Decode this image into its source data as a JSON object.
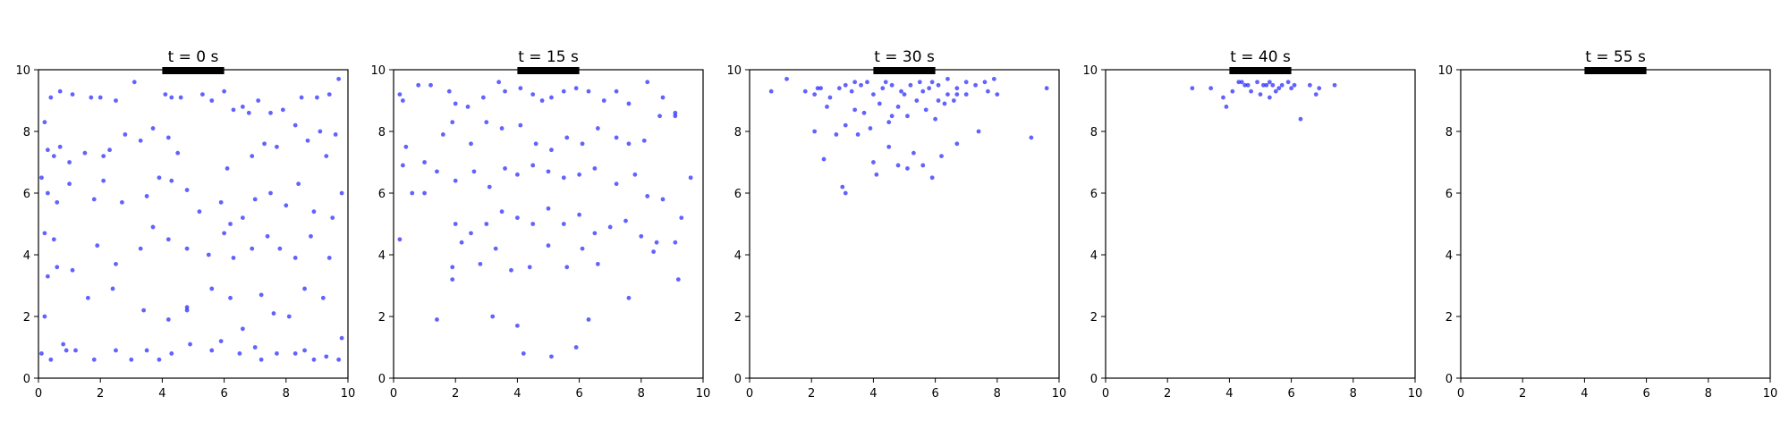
{
  "colors": {
    "points": "#1f1fff",
    "bar": "#000000",
    "frame": "#000000"
  },
  "chart_data": [
    {
      "type": "scatter",
      "title": "t = 0 s",
      "xlim": [
        0,
        10
      ],
      "ylim": [
        0,
        10
      ],
      "xticks": [
        0,
        2,
        4,
        6,
        8,
        10
      ],
      "yticks": [
        0,
        2,
        4,
        6,
        8,
        10
      ],
      "bar": {
        "x": [
          4,
          6
        ],
        "y": 10
      },
      "points": [
        [
          0.2,
          8.3
        ],
        [
          0.4,
          9.1
        ],
        [
          0.7,
          9.3
        ],
        [
          1.1,
          9.2
        ],
        [
          1.7,
          9.1
        ],
        [
          2.0,
          9.1
        ],
        [
          2.5,
          9.0
        ],
        [
          3.1,
          9.6
        ],
        [
          4.1,
          9.2
        ],
        [
          4.3,
          9.1
        ],
        [
          4.6,
          9.1
        ],
        [
          5.3,
          9.2
        ],
        [
          5.6,
          9.0
        ],
        [
          6.0,
          9.3
        ],
        [
          6.3,
          8.7
        ],
        [
          6.6,
          8.8
        ],
        [
          6.8,
          8.6
        ],
        [
          7.1,
          9.0
        ],
        [
          7.5,
          8.6
        ],
        [
          7.9,
          8.7
        ],
        [
          8.5,
          9.1
        ],
        [
          9.0,
          9.1
        ],
        [
          9.4,
          9.2
        ],
        [
          9.7,
          9.7
        ],
        [
          0.3,
          7.4
        ],
        [
          0.5,
          7.2
        ],
        [
          0.7,
          7.5
        ],
        [
          1.0,
          7.0
        ],
        [
          1.5,
          7.3
        ],
        [
          2.1,
          7.2
        ],
        [
          2.3,
          7.4
        ],
        [
          2.8,
          7.9
        ],
        [
          3.3,
          7.7
        ],
        [
          3.7,
          8.1
        ],
        [
          4.2,
          7.8
        ],
        [
          4.5,
          7.3
        ],
        [
          6.1,
          6.8
        ],
        [
          6.9,
          7.2
        ],
        [
          7.3,
          7.6
        ],
        [
          7.7,
          7.5
        ],
        [
          8.3,
          8.2
        ],
        [
          8.7,
          7.7
        ],
        [
          9.1,
          8.0
        ],
        [
          9.3,
          7.2
        ],
        [
          9.6,
          7.9
        ],
        [
          0.1,
          6.5
        ],
        [
          0.3,
          6.0
        ],
        [
          0.6,
          5.7
        ],
        [
          1.0,
          6.3
        ],
        [
          1.8,
          5.8
        ],
        [
          2.1,
          6.4
        ],
        [
          2.7,
          5.7
        ],
        [
          3.5,
          5.9
        ],
        [
          3.9,
          6.5
        ],
        [
          4.3,
          6.4
        ],
        [
          4.8,
          6.1
        ],
        [
          5.2,
          5.4
        ],
        [
          5.9,
          5.7
        ],
        [
          6.2,
          5.0
        ],
        [
          6.6,
          5.2
        ],
        [
          7.0,
          5.8
        ],
        [
          7.5,
          6.0
        ],
        [
          8.0,
          5.6
        ],
        [
          8.4,
          6.3
        ],
        [
          8.9,
          5.4
        ],
        [
          9.5,
          5.2
        ],
        [
          9.8,
          6.0
        ],
        [
          0.2,
          4.7
        ],
        [
          0.5,
          4.5
        ],
        [
          1.1,
          3.5
        ],
        [
          1.9,
          4.3
        ],
        [
          2.5,
          3.7
        ],
        [
          3.3,
          4.2
        ],
        [
          3.7,
          4.9
        ],
        [
          4.2,
          4.5
        ],
        [
          4.8,
          4.2
        ],
        [
          5.5,
          4.0
        ],
        [
          6.0,
          4.7
        ],
        [
          6.3,
          3.9
        ],
        [
          6.9,
          4.2
        ],
        [
          7.4,
          4.6
        ],
        [
          7.8,
          4.2
        ],
        [
          8.3,
          3.9
        ],
        [
          8.8,
          4.6
        ],
        [
          9.4,
          3.9
        ],
        [
          0.3,
          3.3
        ],
        [
          0.6,
          3.6
        ],
        [
          1.6,
          2.6
        ],
        [
          2.4,
          2.9
        ],
        [
          3.4,
          2.2
        ],
        [
          4.2,
          1.9
        ],
        [
          4.8,
          2.2
        ],
        [
          5.6,
          2.9
        ],
        [
          6.2,
          2.6
        ],
        [
          6.6,
          1.6
        ],
        [
          7.2,
          2.7
        ],
        [
          7.6,
          2.1
        ],
        [
          8.1,
          2.0
        ],
        [
          8.6,
          2.9
        ],
        [
          9.2,
          2.6
        ],
        [
          9.8,
          1.3
        ],
        [
          0.1,
          0.8
        ],
        [
          0.4,
          0.6
        ],
        [
          0.8,
          1.1
        ],
        [
          1.2,
          0.9
        ],
        [
          1.8,
          0.6
        ],
        [
          2.5,
          0.9
        ],
        [
          3.0,
          0.6
        ],
        [
          3.5,
          0.9
        ],
        [
          3.9,
          0.6
        ],
        [
          4.3,
          0.8
        ],
        [
          4.9,
          1.1
        ],
        [
          5.6,
          0.9
        ],
        [
          5.9,
          1.2
        ],
        [
          6.5,
          0.8
        ],
        [
          7.2,
          0.6
        ],
        [
          7.7,
          0.8
        ],
        [
          8.3,
          0.8
        ],
        [
          8.9,
          0.6
        ],
        [
          9.3,
          0.7
        ],
        [
          9.7,
          0.6
        ],
        [
          0.2,
          2.0
        ],
        [
          0.9,
          0.9
        ],
        [
          4.8,
          2.3
        ],
        [
          7.0,
          1.0
        ],
        [
          8.6,
          0.9
        ]
      ]
    },
    {
      "type": "scatter",
      "title": "t = 15 s",
      "xlim": [
        0,
        10
      ],
      "ylim": [
        0,
        10
      ],
      "xticks": [
        0,
        2,
        4,
        6,
        8,
        10
      ],
      "yticks": [
        0,
        2,
        4,
        6,
        8,
        10
      ],
      "bar": {
        "x": [
          4,
          6
        ],
        "y": 10
      },
      "points": [
        [
          0.2,
          9.2
        ],
        [
          0.3,
          9.0
        ],
        [
          0.8,
          9.5
        ],
        [
          1.2,
          9.5
        ],
        [
          1.8,
          9.3
        ],
        [
          2.0,
          8.9
        ],
        [
          2.4,
          8.8
        ],
        [
          2.9,
          9.1
        ],
        [
          3.4,
          9.6
        ],
        [
          3.6,
          9.3
        ],
        [
          4.1,
          9.4
        ],
        [
          4.5,
          9.2
        ],
        [
          4.8,
          9.0
        ],
        [
          5.1,
          9.1
        ],
        [
          5.5,
          9.3
        ],
        [
          5.9,
          9.4
        ],
        [
          6.3,
          9.3
        ],
        [
          6.8,
          9.0
        ],
        [
          7.2,
          9.3
        ],
        [
          7.6,
          8.9
        ],
        [
          8.2,
          9.6
        ],
        [
          8.7,
          9.1
        ],
        [
          9.1,
          8.5
        ],
        [
          0.4,
          7.5
        ],
        [
          1.0,
          7.0
        ],
        [
          1.6,
          7.9
        ],
        [
          1.9,
          8.3
        ],
        [
          2.5,
          7.6
        ],
        [
          3.0,
          8.3
        ],
        [
          3.5,
          8.1
        ],
        [
          4.1,
          8.2
        ],
        [
          4.6,
          7.6
        ],
        [
          5.1,
          7.4
        ],
        [
          5.6,
          7.8
        ],
        [
          6.1,
          7.6
        ],
        [
          6.6,
          8.1
        ],
        [
          7.2,
          7.8
        ],
        [
          7.6,
          7.6
        ],
        [
          8.1,
          7.7
        ],
        [
          8.6,
          8.5
        ],
        [
          9.1,
          8.6
        ],
        [
          0.3,
          6.9
        ],
        [
          0.6,
          6.0
        ],
        [
          1.4,
          6.7
        ],
        [
          2.0,
          6.4
        ],
        [
          2.6,
          6.7
        ],
        [
          3.1,
          6.2
        ],
        [
          3.6,
          6.8
        ],
        [
          4.0,
          6.6
        ],
        [
          4.5,
          6.9
        ],
        [
          5.0,
          6.7
        ],
        [
          5.5,
          6.5
        ],
        [
          6.0,
          6.6
        ],
        [
          6.5,
          6.8
        ],
        [
          7.2,
          6.3
        ],
        [
          7.8,
          6.6
        ],
        [
          8.2,
          5.9
        ],
        [
          8.7,
          5.8
        ],
        [
          9.3,
          5.2
        ],
        [
          9.6,
          6.5
        ],
        [
          0.2,
          4.5
        ],
        [
          1.0,
          6.0
        ],
        [
          2.0,
          5.0
        ],
        [
          2.5,
          4.7
        ],
        [
          3.0,
          5.0
        ],
        [
          3.5,
          5.4
        ],
        [
          4.0,
          5.2
        ],
        [
          4.5,
          5.0
        ],
        [
          5.0,
          5.5
        ],
        [
          5.5,
          5.0
        ],
        [
          6.0,
          5.3
        ],
        [
          6.5,
          4.7
        ],
        [
          7.0,
          4.9
        ],
        [
          7.5,
          5.1
        ],
        [
          8.0,
          4.6
        ],
        [
          8.5,
          4.4
        ],
        [
          9.1,
          4.4
        ],
        [
          1.9,
          3.6
        ],
        [
          2.2,
          4.4
        ],
        [
          2.8,
          3.7
        ],
        [
          3.3,
          4.2
        ],
        [
          3.8,
          3.5
        ],
        [
          4.4,
          3.6
        ],
        [
          5.0,
          4.3
        ],
        [
          5.6,
          3.6
        ],
        [
          6.1,
          4.2
        ],
        [
          6.6,
          3.7
        ],
        [
          7.6,
          2.6
        ],
        [
          8.4,
          4.1
        ],
        [
          9.2,
          3.2
        ],
        [
          1.4,
          1.9
        ],
        [
          3.2,
          2.0
        ],
        [
          4.0,
          1.7
        ],
        [
          4.2,
          0.8
        ],
        [
          5.1,
          0.7
        ],
        [
          5.9,
          1.0
        ],
        [
          6.3,
          1.9
        ],
        [
          1.9,
          3.2
        ]
      ]
    },
    {
      "type": "scatter",
      "title": "t = 30 s",
      "xlim": [
        0,
        10
      ],
      "ylim": [
        0,
        10
      ],
      "xticks": [
        0,
        2,
        4,
        6,
        8,
        10
      ],
      "yticks": [
        0,
        2,
        4,
        6,
        8,
        10
      ],
      "bar": {
        "x": [
          4,
          6
        ],
        "y": 10
      },
      "points": [
        [
          0.7,
          9.3
        ],
        [
          1.2,
          9.7
        ],
        [
          1.8,
          9.3
        ],
        [
          2.1,
          9.2
        ],
        [
          2.3,
          9.4
        ],
        [
          2.6,
          9.1
        ],
        [
          2.9,
          9.4
        ],
        [
          3.1,
          9.5
        ],
        [
          3.3,
          9.3
        ],
        [
          3.6,
          9.5
        ],
        [
          3.8,
          9.6
        ],
        [
          4.0,
          9.2
        ],
        [
          4.3,
          9.4
        ],
        [
          4.6,
          9.5
        ],
        [
          4.9,
          9.3
        ],
        [
          5.2,
          9.5
        ],
        [
          5.5,
          9.6
        ],
        [
          5.8,
          9.4
        ],
        [
          6.1,
          9.5
        ],
        [
          6.4,
          9.7
        ],
        [
          6.7,
          9.4
        ],
        [
          7.0,
          9.6
        ],
        [
          7.3,
          9.5
        ],
        [
          7.6,
          9.6
        ],
        [
          7.9,
          9.7
        ],
        [
          2.1,
          8.0
        ],
        [
          2.5,
          8.8
        ],
        [
          2.8,
          7.9
        ],
        [
          3.1,
          8.2
        ],
        [
          3.4,
          8.7
        ],
        [
          3.7,
          8.6
        ],
        [
          3.9,
          8.1
        ],
        [
          4.2,
          8.9
        ],
        [
          4.5,
          8.3
        ],
        [
          4.8,
          8.8
        ],
        [
          5.1,
          8.5
        ],
        [
          5.4,
          9.0
        ],
        [
          5.7,
          8.7
        ],
        [
          6.0,
          8.4
        ],
        [
          6.3,
          8.9
        ],
        [
          6.6,
          9.0
        ],
        [
          7.0,
          9.2
        ],
        [
          7.4,
          8.0
        ],
        [
          7.7,
          9.3
        ],
        [
          2.4,
          7.1
        ],
        [
          3.0,
          6.2
        ],
        [
          3.1,
          6.0
        ],
        [
          3.5,
          7.9
        ],
        [
          4.0,
          7.0
        ],
        [
          4.1,
          6.6
        ],
        [
          4.5,
          7.5
        ],
        [
          4.8,
          6.9
        ],
        [
          5.1,
          6.8
        ],
        [
          5.3,
          7.3
        ],
        [
          5.6,
          6.9
        ],
        [
          5.9,
          6.5
        ],
        [
          6.2,
          7.2
        ],
        [
          6.7,
          7.6
        ],
        [
          4.6,
          8.5
        ],
        [
          5.0,
          9.2
        ],
        [
          5.6,
          9.3
        ],
        [
          6.1,
          9.0
        ],
        [
          6.4,
          9.2
        ],
        [
          2.2,
          9.4
        ],
        [
          3.4,
          9.6
        ],
        [
          4.4,
          9.6
        ],
        [
          5.9,
          9.6
        ],
        [
          6.7,
          9.2
        ],
        [
          8.0,
          9.2
        ],
        [
          9.1,
          7.8
        ],
        [
          9.6,
          9.4
        ]
      ]
    },
    {
      "type": "scatter",
      "title": "t = 40 s",
      "xlim": [
        0,
        10
      ],
      "ylim": [
        0,
        10
      ],
      "xticks": [
        0,
        2,
        4,
        6,
        8,
        10
      ],
      "yticks": [
        0,
        2,
        4,
        6,
        8,
        10
      ],
      "bar": {
        "x": [
          4,
          6
        ],
        "y": 10
      },
      "points": [
        [
          2.8,
          9.4
        ],
        [
          3.4,
          9.4
        ],
        [
          3.8,
          9.1
        ],
        [
          3.9,
          8.8
        ],
        [
          4.3,
          9.6
        ],
        [
          4.5,
          9.5
        ],
        [
          4.7,
          9.3
        ],
        [
          4.9,
          9.6
        ],
        [
          5.0,
          9.2
        ],
        [
          5.2,
          9.5
        ],
        [
          5.3,
          9.1
        ],
        [
          5.4,
          9.5
        ],
        [
          5.5,
          9.3
        ],
        [
          5.7,
          9.5
        ],
        [
          5.9,
          9.6
        ],
        [
          6.0,
          9.4
        ],
        [
          6.3,
          8.4
        ],
        [
          6.6,
          9.5
        ],
        [
          6.8,
          9.2
        ],
        [
          6.9,
          9.4
        ],
        [
          7.4,
          9.5
        ],
        [
          4.1,
          9.3
        ],
        [
          4.4,
          9.6
        ],
        [
          5.1,
          9.5
        ],
        [
          5.6,
          9.4
        ],
        [
          6.1,
          9.5
        ],
        [
          4.6,
          9.5
        ],
        [
          5.3,
          9.6
        ]
      ]
    },
    {
      "type": "scatter",
      "title": "t = 55 s",
      "xlim": [
        0,
        10
      ],
      "ylim": [
        0,
        10
      ],
      "xticks": [
        0,
        2,
        4,
        6,
        8,
        10
      ],
      "yticks": [
        0,
        2,
        4,
        6,
        8,
        10
      ],
      "bar": {
        "x": [
          4,
          6
        ],
        "y": 10
      },
      "points": []
    }
  ]
}
